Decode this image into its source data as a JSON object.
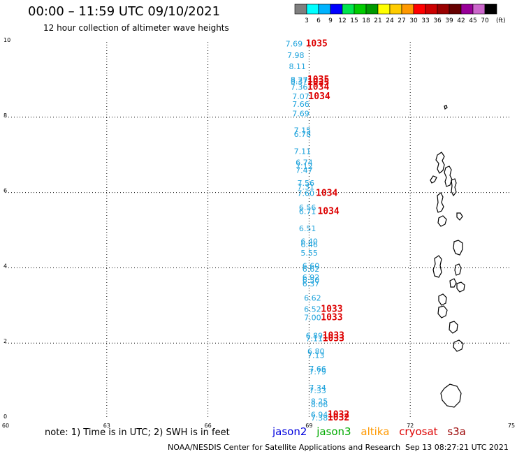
{
  "header": {
    "title": "00:00 – 11:59 UTC 09/10/2021",
    "subtitle": "12 hour collection of altimeter wave heights"
  },
  "colorbar": {
    "unit": "(ft)",
    "bins": [
      {
        "label": "",
        "color": "#7f7f7f"
      },
      {
        "label": "3",
        "color": "#00ffff"
      },
      {
        "label": "6",
        "color": "#00b3ff"
      },
      {
        "label": "9",
        "color": "#0000ff"
      },
      {
        "label": "12",
        "color": "#00e64d"
      },
      {
        "label": "15",
        "color": "#00cc00"
      },
      {
        "label": "18",
        "color": "#009900"
      },
      {
        "label": "21",
        "color": "#ffff00"
      },
      {
        "label": "24",
        "color": "#ffcc00"
      },
      {
        "label": "27",
        "color": "#ff9900"
      },
      {
        "label": "30",
        "color": "#ff0000"
      },
      {
        "label": "33",
        "color": "#cc0000"
      },
      {
        "label": "36",
        "color": "#990000"
      },
      {
        "label": "39",
        "color": "#660000"
      },
      {
        "label": "42",
        "color": "#990099"
      },
      {
        "label": "45",
        "color": "#cc66cc"
      },
      {
        "label": "70",
        "color": "#000000"
      }
    ]
  },
  "map": {
    "lon_ticks": [
      "60",
      "63",
      "66",
      "69",
      "72",
      "75"
    ],
    "lat_ticks": [
      "0",
      "2",
      "4",
      "6",
      "8",
      "10"
    ],
    "lon_range": [
      60,
      75
    ],
    "lat_range": [
      0,
      10
    ],
    "wave_heights": [
      {
        "lon": 68.3,
        "lat": 9.95,
        "text": "7.69",
        "color": "#1fa3dc"
      },
      {
        "lon": 68.35,
        "lat": 9.65,
        "text": "7.98",
        "color": "#1fa3dc"
      },
      {
        "lon": 68.4,
        "lat": 9.35,
        "text": "8.11",
        "color": "#1fa3dc"
      },
      {
        "lon": 68.45,
        "lat": 9.0,
        "text": "8.27",
        "color": "#1fa3dc"
      },
      {
        "lon": 68.45,
        "lat": 8.95,
        "text": "8.37",
        "color": "#1fa3dc"
      },
      {
        "lon": 68.45,
        "lat": 8.8,
        "text": "7.36",
        "color": "#1fa3dc"
      },
      {
        "lon": 68.5,
        "lat": 8.55,
        "text": "7.07",
        "color": "#1fa3dc"
      },
      {
        "lon": 68.5,
        "lat": 8.35,
        "text": "7.66",
        "color": "#1fa3dc"
      },
      {
        "lon": 68.5,
        "lat": 8.1,
        "text": "7.69",
        "color": "#1fa3dc"
      },
      {
        "lon": 68.55,
        "lat": 7.65,
        "text": "7.15",
        "color": "#1fa3dc"
      },
      {
        "lon": 68.55,
        "lat": 7.55,
        "text": "6.78",
        "color": "#1fa3dc"
      },
      {
        "lon": 68.55,
        "lat": 7.1,
        "text": "7.11",
        "color": "#1fa3dc"
      },
      {
        "lon": 68.6,
        "lat": 6.8,
        "text": "6.74",
        "color": "#1fa3dc"
      },
      {
        "lon": 68.6,
        "lat": 6.7,
        "text": "7.12",
        "color": "#1fa3dc"
      },
      {
        "lon": 68.6,
        "lat": 6.6,
        "text": "7.47",
        "color": "#1fa3dc"
      },
      {
        "lon": 68.65,
        "lat": 6.25,
        "text": "7.56",
        "color": "#1fa3dc"
      },
      {
        "lon": 68.65,
        "lat": 6.15,
        "text": "7.31",
        "color": "#1fa3dc"
      },
      {
        "lon": 68.65,
        "lat": 5.98,
        "text": "7.60",
        "color": "#1fa3dc"
      },
      {
        "lon": 68.7,
        "lat": 5.6,
        "text": "6.56",
        "color": "#1fa3dc"
      },
      {
        "lon": 68.7,
        "lat": 5.5,
        "text": "6.71",
        "color": "#1fa3dc"
      },
      {
        "lon": 68.7,
        "lat": 5.05,
        "text": "6.51",
        "color": "#1fa3dc"
      },
      {
        "lon": 68.75,
        "lat": 4.7,
        "text": "6.40",
        "color": "#1fa3dc"
      },
      {
        "lon": 68.75,
        "lat": 4.62,
        "text": "6.46",
        "color": "#1fa3dc"
      },
      {
        "lon": 68.75,
        "lat": 4.4,
        "text": "5.55",
        "color": "#1fa3dc"
      },
      {
        "lon": 68.8,
        "lat": 4.05,
        "text": "6.60",
        "color": "#1fa3dc"
      },
      {
        "lon": 68.8,
        "lat": 3.97,
        "text": "6.62",
        "color": "#1fa3dc"
      },
      {
        "lon": 68.8,
        "lat": 3.75,
        "text": "6.92",
        "color": "#1fa3dc"
      },
      {
        "lon": 68.8,
        "lat": 3.67,
        "text": "6.50",
        "color": "#1fa3dc"
      },
      {
        "lon": 68.8,
        "lat": 3.58,
        "text": "6.37",
        "color": "#1fa3dc"
      },
      {
        "lon": 68.85,
        "lat": 3.2,
        "text": "6.62",
        "color": "#1fa3dc"
      },
      {
        "lon": 68.85,
        "lat": 2.9,
        "text": "6.52",
        "color": "#1fa3dc"
      },
      {
        "lon": 68.85,
        "lat": 2.68,
        "text": "7.00",
        "color": "#1fa3dc"
      },
      {
        "lon": 68.9,
        "lat": 2.2,
        "text": "6.89",
        "color": "#1fa3dc"
      },
      {
        "lon": 68.9,
        "lat": 2.12,
        "text": "7.11",
        "color": "#1fa3dc"
      },
      {
        "lon": 68.95,
        "lat": 1.78,
        "text": "6.80",
        "color": "#1fa3dc"
      },
      {
        "lon": 68.95,
        "lat": 1.68,
        "text": "7.13",
        "color": "#1fa3dc"
      },
      {
        "lon": 69.0,
        "lat": 1.32,
        "text": "7.66",
        "color": "#1fa3dc"
      },
      {
        "lon": 69.0,
        "lat": 1.24,
        "text": "7.79",
        "color": "#1fa3dc"
      },
      {
        "lon": 69.0,
        "lat": 0.82,
        "text": "7.34",
        "color": "#1fa3dc"
      },
      {
        "lon": 69.0,
        "lat": 0.74,
        "text": "7.33",
        "color": "#1fa3dc"
      },
      {
        "lon": 69.05,
        "lat": 0.45,
        "text": "8.25",
        "color": "#1fa3dc"
      },
      {
        "lon": 69.05,
        "lat": 0.37,
        "text": "8.06",
        "color": "#1fa3dc"
      },
      {
        "lon": 69.05,
        "lat": 0.1,
        "text": "6.94",
        "color": "#1fa3dc"
      },
      {
        "lon": 69.05,
        "lat": 0.02,
        "text": "7.38",
        "color": "#1fa3dc"
      }
    ],
    "pressures": [
      {
        "lon": 68.9,
        "lat": 9.95,
        "text": "1035",
        "color": "#dd0000"
      },
      {
        "lon": 68.95,
        "lat": 9.0,
        "text": "1035",
        "color": "#dd0000"
      },
      {
        "lon": 68.95,
        "lat": 8.92,
        "text": "1035",
        "color": "#dd0000"
      },
      {
        "lon": 68.95,
        "lat": 8.8,
        "text": "1034",
        "color": "#dd0000"
      },
      {
        "lon": 68.98,
        "lat": 8.55,
        "text": "1034",
        "color": "#dd0000"
      },
      {
        "lon": 69.2,
        "lat": 5.98,
        "text": "1034",
        "color": "#dd0000"
      },
      {
        "lon": 69.25,
        "lat": 5.5,
        "text": "1034",
        "color": "#dd0000"
      },
      {
        "lon": 69.35,
        "lat": 2.9,
        "text": "1033",
        "color": "#dd0000"
      },
      {
        "lon": 69.35,
        "lat": 2.68,
        "text": "1033",
        "color": "#dd0000"
      },
      {
        "lon": 69.4,
        "lat": 2.2,
        "text": "1033",
        "color": "#dd0000"
      },
      {
        "lon": 69.4,
        "lat": 2.12,
        "text": "1033",
        "color": "#dd0000"
      },
      {
        "lon": 69.55,
        "lat": 0.1,
        "text": "1032",
        "color": "#dd0000"
      },
      {
        "lon": 69.55,
        "lat": 0.02,
        "text": "1032",
        "color": "#dd0000"
      }
    ]
  },
  "footer": {
    "note": "note: 1) Time is in UTC; 2) SWH is in feet",
    "legend": [
      {
        "name": "jason2",
        "color": "#0000dd"
      },
      {
        "name": "jason3",
        "color": "#00aa00"
      },
      {
        "name": "altika",
        "color": "#ff9900"
      },
      {
        "name": "cryosat",
        "color": "#dd0000"
      },
      {
        "name": "s3a",
        "color": "#990000"
      }
    ],
    "credit": "NOAA/NESDIS Center for Satellite Applications and Research",
    "timestamp": "Sep 13 08:27:21 UTC 2021"
  }
}
